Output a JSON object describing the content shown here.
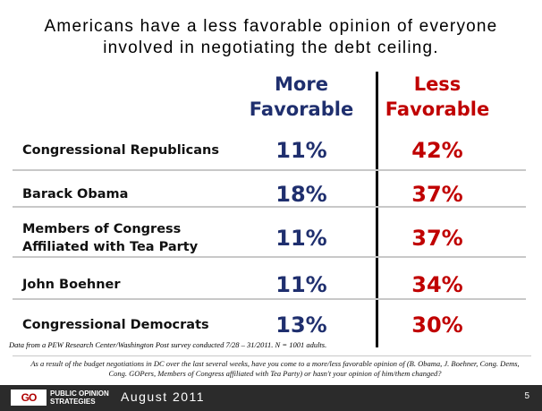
{
  "title_lines": [
    "Americans have a less favorable opinion of everyone",
    "involved in negotiating the debt ceiling."
  ],
  "chart_data": {
    "type": "table",
    "columns": [
      {
        "name_lines": [
          "More",
          "Favorable"
        ],
        "color": "#1f2f6e"
      },
      {
        "name_lines": [
          "Less",
          "Favorable"
        ],
        "color": "#c00000"
      }
    ],
    "rows": [
      {
        "label_lines": [
          "Congressional Republicans"
        ],
        "more": "11%",
        "less": "42%"
      },
      {
        "label_lines": [
          "Barack Obama"
        ],
        "more": "18%",
        "less": "37%"
      },
      {
        "label_lines": [
          "Members of Congress",
          "Affiliated with Tea Party"
        ],
        "more": "11%",
        "less": "37%"
      },
      {
        "label_lines": [
          "John Boehner"
        ],
        "more": "11%",
        "less": "34%"
      },
      {
        "label_lines": [
          "Congressional Democrats"
        ],
        "more": "13%",
        "less": "30%"
      }
    ]
  },
  "source_note": "Data from a PEW Research Center/Washington Post survey conducted 7/28 – 31/2011. N = 1001 adults.",
  "question_note": "As a result of the budget negotiations in DC over the last several weeks, have you come to a more/less favorable opinion of (B. Obama, J. Boehner, Cong. Dems, Cong. GOPers, Members of Congress affiliated with Tea Party) or hasn't your opinion of him/them changed?",
  "footer": {
    "logo_mark": "GO",
    "logo_lines": [
      "PUBLIC OPINION",
      "STRATEGIES"
    ],
    "date": "August 2011",
    "page_number": "5"
  }
}
